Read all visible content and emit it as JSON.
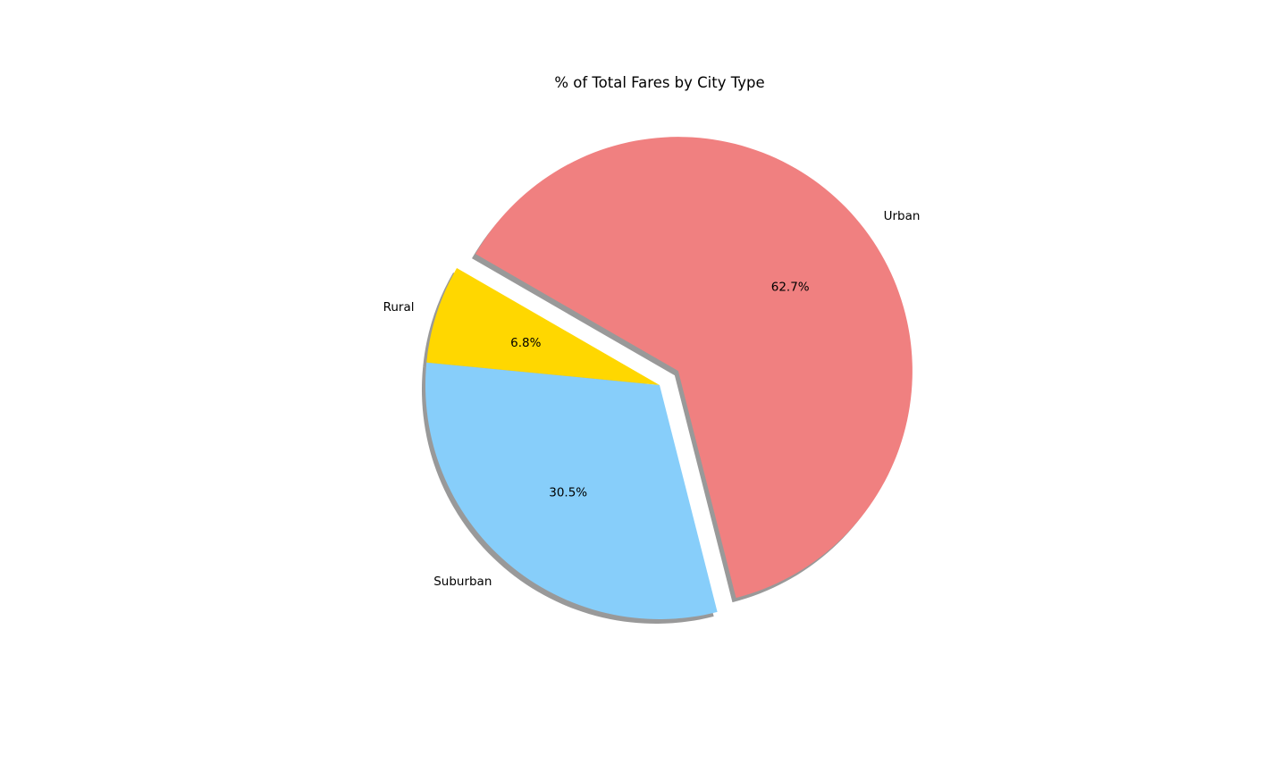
{
  "chart_data": {
    "type": "pie",
    "title": "% of Total Fares by City Type",
    "slices": [
      {
        "label": "Rural",
        "value": 6.8,
        "pct_label": "6.8%",
        "color": "#FFD700",
        "explode": 0
      },
      {
        "label": "Suburban",
        "value": 30.5,
        "pct_label": "30.5%",
        "color": "#87CEFA",
        "explode": 0
      },
      {
        "label": "Urban",
        "value": 62.7,
        "pct_label": "62.7%",
        "color": "#F08080",
        "explode": 0.1
      }
    ],
    "start_angle_deg": 150,
    "direction": "counterclockwise",
    "shadow": true
  }
}
